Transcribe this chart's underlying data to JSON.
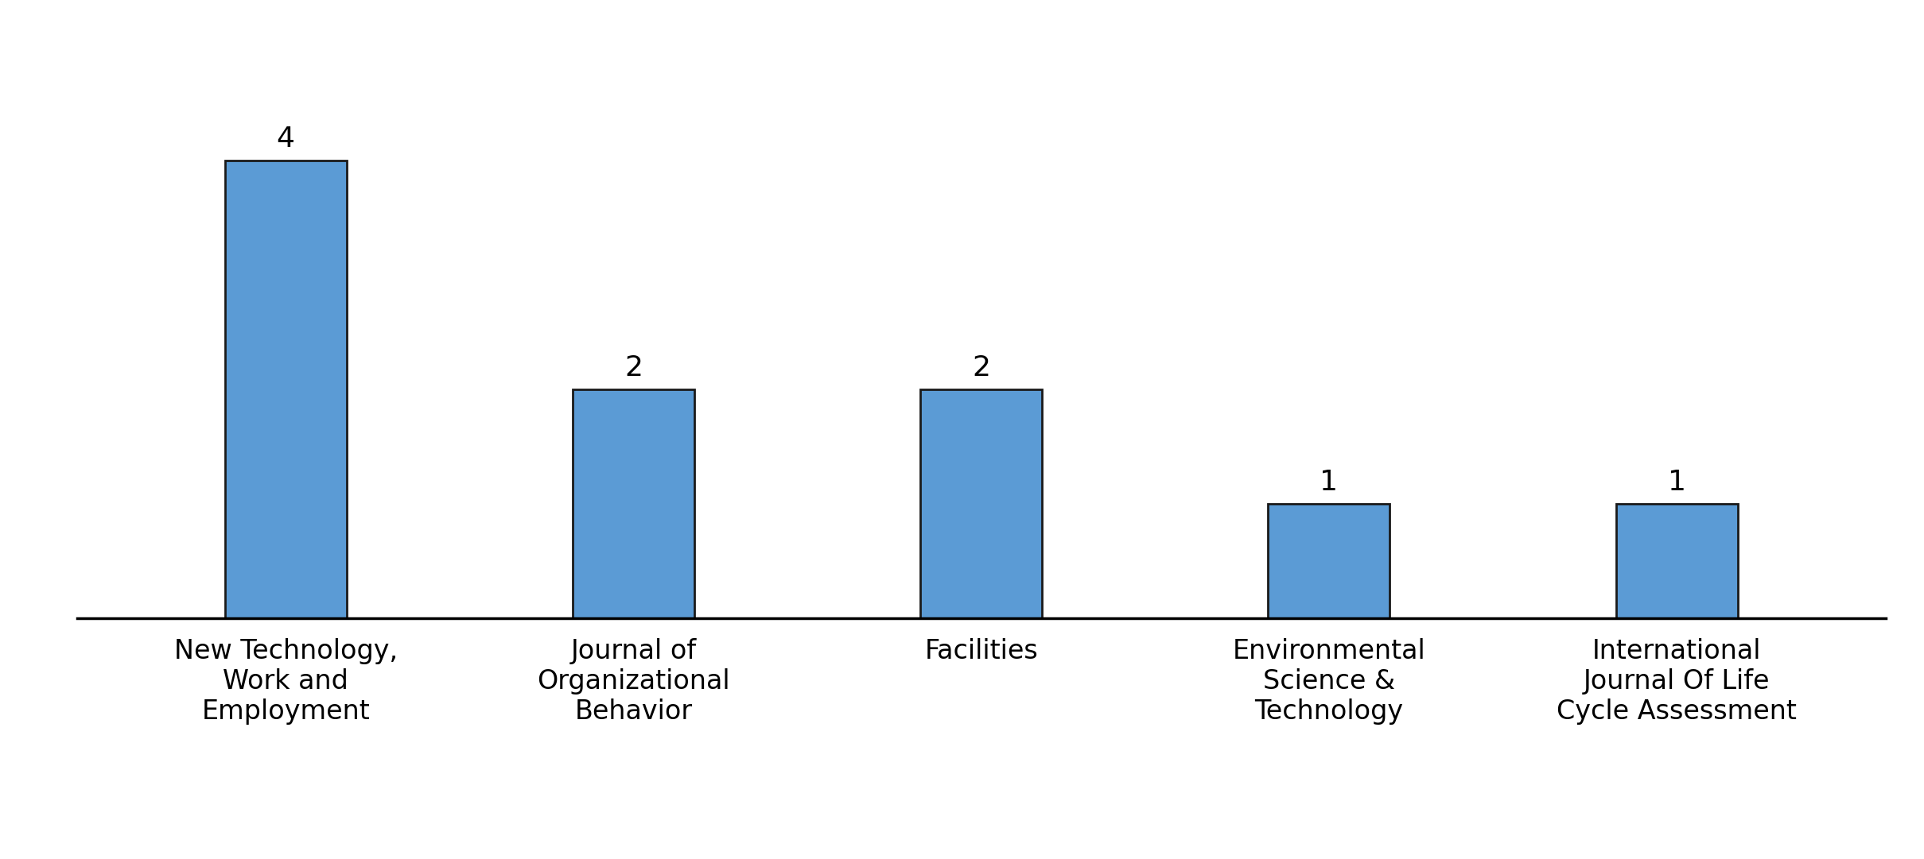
{
  "categories": [
    "New Technology,\nWork and\nEmployment",
    "Journal of\nOrganizational\nBehavior",
    "Facilities",
    "Environmental\nScience &\nTechnology",
    "International\nJournal Of Life\nCycle Assessment"
  ],
  "values": [
    4,
    2,
    2,
    1,
    1
  ],
  "bar_color": "#5B9BD5",
  "bar_edge_color": "#1a1a1a",
  "background_color": "#ffffff",
  "ylim": [
    0,
    4.8
  ],
  "label_fontsize": 26,
  "tick_fontsize": 24,
  "bar_width": 0.35,
  "figsize": [
    24.19,
    10.81
  ],
  "dpi": 100
}
